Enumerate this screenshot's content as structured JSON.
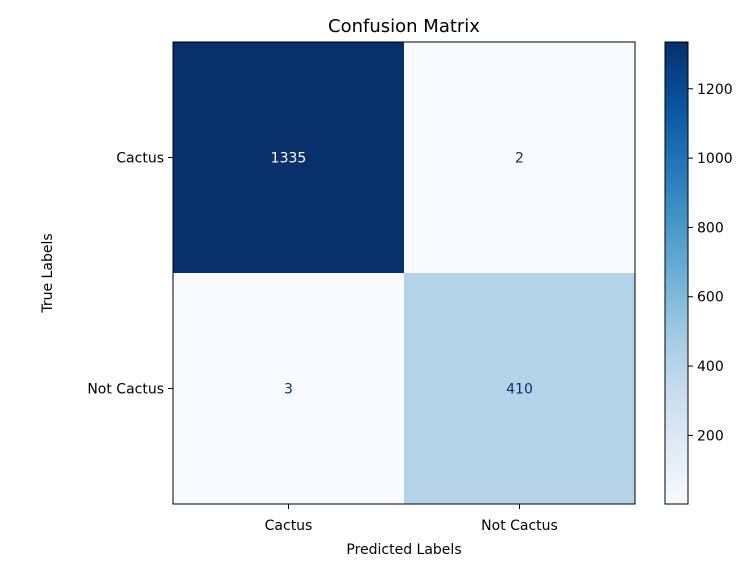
{
  "chart_data": {
    "type": "heatmap",
    "title": "Confusion Matrix",
    "xlabel": "Predicted Labels",
    "ylabel": "True Labels",
    "x_categories": [
      "Cactus",
      "Not Cactus"
    ],
    "y_categories": [
      "Cactus",
      "Not Cactus"
    ],
    "values": [
      [
        1335,
        2
      ],
      [
        3,
        410
      ]
    ],
    "colormap": "Blues",
    "colorbar": {
      "range": [
        2,
        1335
      ],
      "ticks": [
        200,
        400,
        600,
        800,
        1000,
        1200
      ]
    },
    "grid": false,
    "colors": {
      "dark_cell": "#08306b",
      "mid_cell": "#b3d3e8",
      "light_cell": "#f7fbff",
      "text_on_dark": "#ffffff",
      "text_on_light": "#08306b"
    }
  }
}
